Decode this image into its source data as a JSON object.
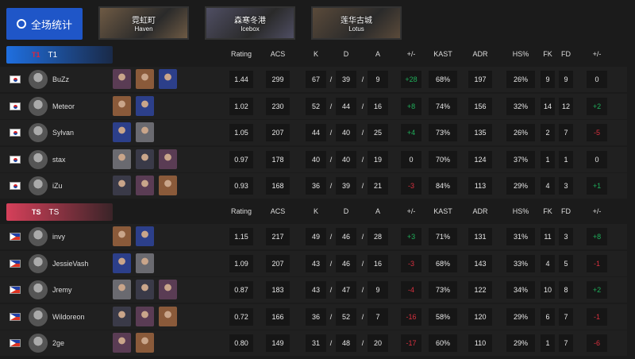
{
  "overall_button": "全场统计",
  "maps": [
    {
      "cn": "霓虹町",
      "en": "Haven",
      "color": "#6e5a44"
    },
    {
      "cn": "森寒冬港",
      "en": "Icebox",
      "color": "#4f4e63"
    },
    {
      "cn": "莲华古城",
      "en": "Lotus",
      "color": "#5a4a3a"
    }
  ],
  "columns": [
    "Rating",
    "ACS",
    "K",
    "D",
    "A",
    "+/-",
    "KAST",
    "ADR",
    "HS%",
    "FK",
    "FD",
    "+/-"
  ],
  "colors": {
    "positive": "#1fae5a",
    "negative": "#d9303f",
    "t1": "#1f6fe0",
    "ts": "#d6405a"
  },
  "teams": [
    {
      "name": "T1",
      "logo": "T1",
      "flag": "kr",
      "players": [
        {
          "name": "BuZz",
          "agents": [
            "agent",
            "agent",
            "agent"
          ],
          "stats": [
            "1.44",
            "299",
            "67",
            "39",
            "9",
            "+28",
            "68%",
            "197",
            "26%",
            "9",
            "9",
            "0"
          ]
        },
        {
          "name": "Meteor",
          "agents": [
            "agent",
            "agent"
          ],
          "stats": [
            "1.02",
            "230",
            "52",
            "44",
            "16",
            "+8",
            "74%",
            "156",
            "32%",
            "14",
            "12",
            "+2"
          ]
        },
        {
          "name": "Sylvan",
          "agents": [
            "agent",
            "agent"
          ],
          "stats": [
            "1.05",
            "207",
            "44",
            "40",
            "25",
            "+4",
            "73%",
            "135",
            "26%",
            "2",
            "7",
            "-5"
          ]
        },
        {
          "name": "stax",
          "agents": [
            "agent",
            "agent",
            "agent"
          ],
          "stats": [
            "0.97",
            "178",
            "40",
            "40",
            "19",
            "0",
            "70%",
            "124",
            "37%",
            "1",
            "1",
            "0"
          ]
        },
        {
          "name": "iZu",
          "agents": [
            "agent",
            "agent",
            "agent"
          ],
          "stats": [
            "0.93",
            "168",
            "36",
            "39",
            "21",
            "-3",
            "84%",
            "113",
            "29%",
            "4",
            "3",
            "+1"
          ]
        }
      ]
    },
    {
      "name": "TS",
      "logo": "TS",
      "flag": "ph",
      "players": [
        {
          "name": "invy",
          "agents": [
            "agent",
            "agent"
          ],
          "stats": [
            "1.15",
            "217",
            "49",
            "46",
            "28",
            "+3",
            "71%",
            "131",
            "31%",
            "11",
            "3",
            "+8"
          ]
        },
        {
          "name": "JessieVash",
          "agents": [
            "agent",
            "agent"
          ],
          "stats": [
            "1.09",
            "207",
            "43",
            "46",
            "16",
            "-3",
            "68%",
            "143",
            "33%",
            "4",
            "5",
            "-1"
          ]
        },
        {
          "name": "Jremy",
          "agents": [
            "agent",
            "agent",
            "agent"
          ],
          "stats": [
            "0.87",
            "183",
            "43",
            "47",
            "9",
            "-4",
            "73%",
            "122",
            "34%",
            "10",
            "8",
            "+2"
          ]
        },
        {
          "name": "Wildoreon",
          "agents": [
            "agent",
            "agent",
            "agent"
          ],
          "stats": [
            "0.72",
            "166",
            "36",
            "52",
            "7",
            "-16",
            "58%",
            "120",
            "29%",
            "6",
            "7",
            "-1"
          ]
        },
        {
          "name": "2ge",
          "agents": [
            "agent",
            "agent"
          ],
          "stats": [
            "0.80",
            "149",
            "31",
            "48",
            "20",
            "-17",
            "60%",
            "110",
            "29%",
            "1",
            "7",
            "-6"
          ]
        }
      ]
    }
  ]
}
